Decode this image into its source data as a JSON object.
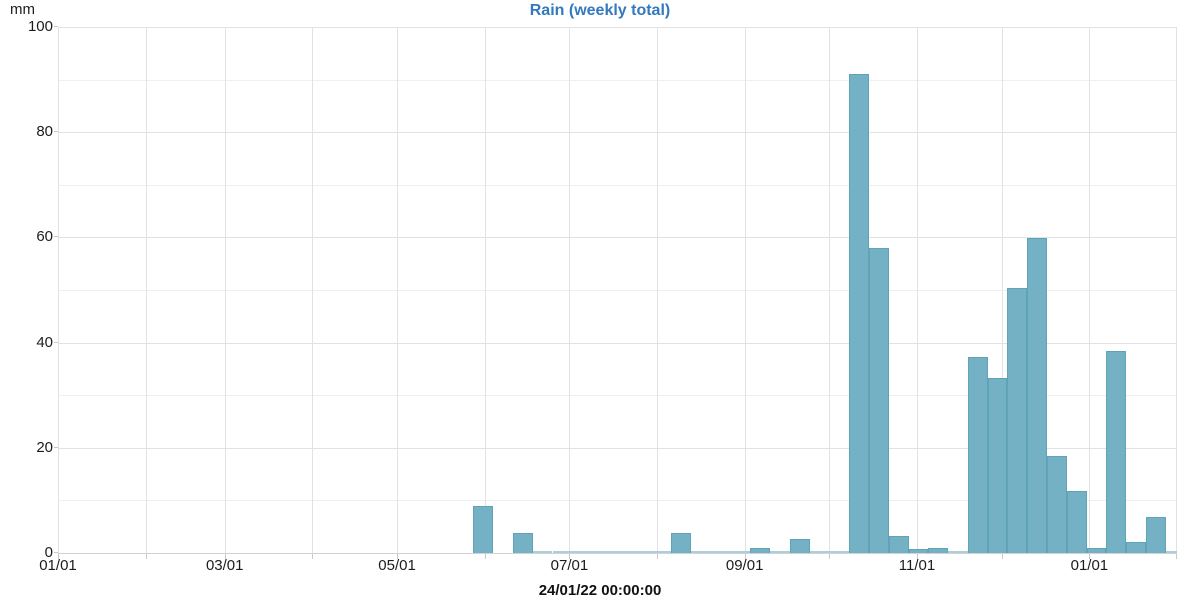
{
  "chart_data": {
    "type": "bar",
    "title": "Rain (weekly total)",
    "ylabel": "mm",
    "xlabel": "",
    "footer_label": "24/01/22 00:00:00",
    "ylim": [
      0,
      100
    ],
    "y_tick_step": 20,
    "y_grid_step": 10,
    "grid": "on",
    "legend_position": "none",
    "x_tick_labels": [
      "01/01",
      "03/01",
      "05/01",
      "07/01",
      "09/01",
      "11/01",
      "01/01"
    ],
    "x_tick_days": [
      0,
      59,
      120,
      181,
      243,
      304,
      365
    ],
    "month_grid_days": [
      0,
      31,
      59,
      90,
      120,
      151,
      181,
      212,
      243,
      273,
      304,
      334,
      365,
      396
    ],
    "x_total_days": 396,
    "bar_bin": "1 week (7 days), starting 01/01",
    "series": [
      {
        "name": "Rain (weekly total)",
        "weekly_values": [
          0,
          0,
          0,
          0,
          0,
          0,
          0,
          0,
          0,
          0,
          0,
          0,
          0,
          0,
          0,
          0,
          0,
          0,
          0,
          0,
          0,
          9,
          0,
          3.8,
          0.2,
          0.2,
          0.2,
          0.2,
          0.2,
          0.2,
          0.2,
          3.8,
          0.2,
          0.2,
          0.2,
          1,
          0.2,
          2.7,
          0.2,
          0.2,
          91,
          58,
          3.3,
          0.7,
          1,
          0.2,
          37.3,
          33.2,
          50.4,
          59.8,
          18.5,
          11.7,
          0.9,
          38.5,
          2,
          6.9,
          0.2
        ]
      }
    ],
    "colors": {
      "bar_fill": "#74b1c4",
      "bar_border": "#5fa3b8",
      "trace_fill": "#a9cfdc",
      "title": "#3379bd",
      "grid_major": "#e2e2e2",
      "grid_minor": "#efefef",
      "axis_line": "#d2d2d2",
      "tick": "#c9c9c9",
      "text": "#1c1c1c"
    }
  }
}
